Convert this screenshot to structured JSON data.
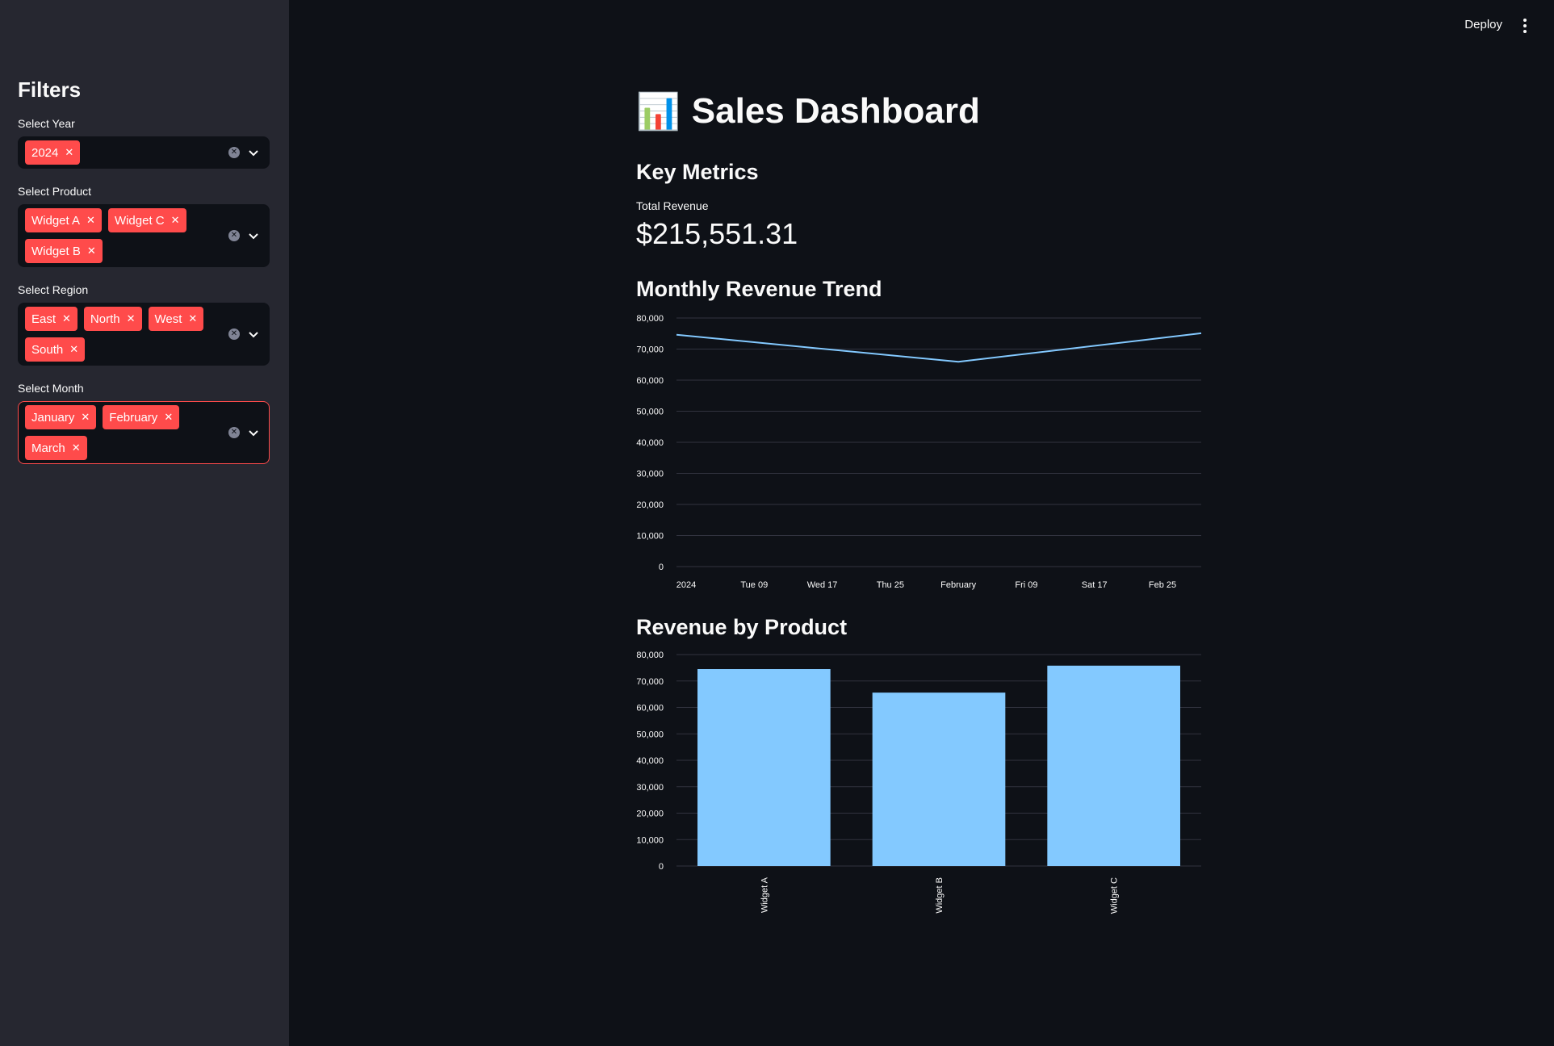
{
  "header": {
    "deploy_label": "Deploy",
    "menu_icon": "kebab-menu-icon"
  },
  "sidebar": {
    "title": "Filters",
    "filters": [
      {
        "label": "Select Year",
        "chips": [
          "2024"
        ]
      },
      {
        "label": "Select Product",
        "chips": [
          "Widget A",
          "Widget C",
          "Widget B"
        ]
      },
      {
        "label": "Select Region",
        "chips": [
          "East",
          "North",
          "West",
          "South"
        ]
      },
      {
        "label": "Select Month",
        "chips": [
          "January",
          "February",
          "March"
        ]
      }
    ]
  },
  "main": {
    "title_icon": "📊",
    "title": "Sales Dashboard",
    "key_metrics_heading": "Key Metrics",
    "metric_label": "Total Revenue",
    "metric_value": "$215,551.31",
    "trend_heading": "Monthly Revenue Trend",
    "product_heading": "Revenue by Product"
  },
  "colors": {
    "accent": "#ff4b4b",
    "line": "#83c9ff",
    "bar": "#83c9ff",
    "sidebar_bg": "#262730",
    "main_bg": "#0e1117"
  },
  "chart_data": [
    {
      "type": "line",
      "title": "Monthly Revenue Trend",
      "x_ticks": [
        "2024",
        "Tue 09",
        "Wed 17",
        "Thu 25",
        "February",
        "Fri 09",
        "Sat 17",
        "Feb 25"
      ],
      "y_ticks": [
        "0",
        "10,000",
        "20,000",
        "30,000",
        "40,000",
        "50,000",
        "60,000",
        "70,000",
        "80,000"
      ],
      "ylim": [
        0,
        80000
      ],
      "series": [
        {
          "name": "Revenue",
          "x": [
            "2024-01-01",
            "2024-02-01",
            "2024-03-01"
          ],
          "values": [
            74600,
            65900,
            75100
          ]
        }
      ]
    },
    {
      "type": "bar",
      "title": "Revenue by Product",
      "categories": [
        "Widget A",
        "Widget B",
        "Widget C"
      ],
      "values": [
        74500,
        65600,
        75800
      ],
      "y_ticks": [
        "0",
        "10,000",
        "20,000",
        "30,000",
        "40,000",
        "50,000",
        "60,000",
        "70,000",
        "80,000"
      ],
      "ylim": [
        0,
        80000
      ]
    }
  ]
}
